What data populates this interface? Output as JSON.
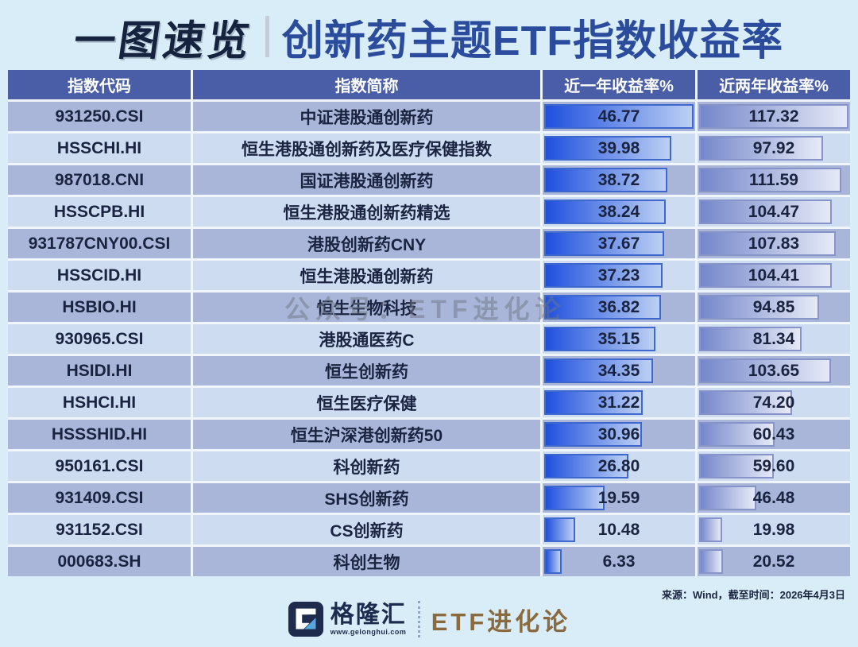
{
  "title": {
    "left": "一图速览",
    "right": "创新药主题ETF指数收益率"
  },
  "table": {
    "headers": [
      "指数代码",
      "指数简称",
      "近一年收益率%",
      "近两年收益率%"
    ],
    "rows": [
      {
        "code": "931250.CSI",
        "name": "中证港股通创新药",
        "y1": "46.77",
        "y2": "117.32"
      },
      {
        "code": "HSSCHI.HI",
        "name": "恒生港股通创新药及医疗保健指数",
        "y1": "39.98",
        "y2": "97.92"
      },
      {
        "code": "987018.CNI",
        "name": "国证港股通创新药",
        "y1": "38.72",
        "y2": "111.59"
      },
      {
        "code": "HSSCPB.HI",
        "name": "恒生港股通创新药精选",
        "y1": "38.24",
        "y2": "104.47"
      },
      {
        "code": "931787CNY00.CSI",
        "name": "港股创新药CNY",
        "y1": "37.67",
        "y2": "107.83"
      },
      {
        "code": "HSSCID.HI",
        "name": "恒生港股通创新药",
        "y1": "37.23",
        "y2": "104.41"
      },
      {
        "code": "HSBIO.HI",
        "name": "恒生生物科技",
        "y1": "36.82",
        "y2": "94.85"
      },
      {
        "code": "930965.CSI",
        "name": "港股通医药C",
        "y1": "35.15",
        "y2": "81.34"
      },
      {
        "code": "HSIDI.HI",
        "name": "恒生创新药",
        "y1": "34.35",
        "y2": "103.65"
      },
      {
        "code": "HSHCI.HI",
        "name": "恒生医疗保健",
        "y1": "31.22",
        "y2": "74.20"
      },
      {
        "code": "HSSSHID.HI",
        "name": "恒生沪深港创新药50",
        "y1": "30.96",
        "y2": "60.43"
      },
      {
        "code": "950161.CSI",
        "name": "科创新药",
        "y1": "26.80",
        "y2": "59.60"
      },
      {
        "code": "931409.CSI",
        "name": "SHS创新药",
        "y1": "19.59",
        "y2": "46.48"
      },
      {
        "code": "931152.CSI",
        "name": "CS创新药",
        "y1": "10.48",
        "y2": "19.98"
      },
      {
        "code": "000683.SH",
        "name": "科创生物",
        "y1": "6.33",
        "y2": "20.52"
      }
    ]
  },
  "watermark": "公众号：ETF进化论",
  "source_note": "来源：Wind，截至时间：2026年4月3日",
  "footer": {
    "brand": "格隆汇",
    "brand_url": "www.gelonghui.com",
    "sub_brand": "ETF进化论"
  },
  "colors": {
    "page_bg": "#d9edf8",
    "title_dark": "#16233f",
    "title_blue": "#2b4c9c",
    "header_bg": "#4a5ea7",
    "row_odd_bg": "#a9b6d9",
    "row_even_bg": "#cddcf0",
    "bar_y1_start": "#1f50de",
    "bar_y1_end": "#bcd0f3",
    "bar_y1_border": "#3f68cf",
    "bar_y2_start": "#7587ca",
    "bar_y2_end": "#e6eaf7",
    "bar_y2_border": "#8794c9",
    "text_dark": "#1a2440",
    "sub_brand_color": "#8a6a3e"
  },
  "chart_data": {
    "type": "bar",
    "orientation": "horizontal",
    "title": "创新药主题ETF指数收益率",
    "categories": [
      "中证港股通创新药",
      "恒生港股通创新药及医疗保健指数",
      "国证港股通创新药",
      "恒生港股通创新药精选",
      "港股创新药CNY",
      "恒生港股通创新药",
      "恒生生物科技",
      "港股通医药C",
      "恒生创新药",
      "恒生医疗保健",
      "恒生沪深港创新药50",
      "科创新药",
      "SHS创新药",
      "CS创新药",
      "科创生物"
    ],
    "category_codes": [
      "931250.CSI",
      "HSSCHI.HI",
      "987018.CNI",
      "HSSCPB.HI",
      "931787CNY00.CSI",
      "HSSCID.HI",
      "HSBIO.HI",
      "930965.CSI",
      "HSIDI.HI",
      "HSHCI.HI",
      "HSSSHID.HI",
      "950161.CSI",
      "931409.CSI",
      "931152.CSI",
      "000683.SH"
    ],
    "series": [
      {
        "name": "近一年收益率%",
        "values": [
          46.77,
          39.98,
          38.72,
          38.24,
          37.67,
          37.23,
          36.82,
          35.15,
          34.35,
          31.22,
          30.96,
          26.8,
          19.59,
          10.48,
          6.33
        ]
      },
      {
        "name": "近两年收益率%",
        "values": [
          117.32,
          97.92,
          111.59,
          104.47,
          107.83,
          104.41,
          94.85,
          81.34,
          103.65,
          74.2,
          60.43,
          59.6,
          46.48,
          19.98,
          20.52
        ]
      }
    ],
    "xlabel": "",
    "ylabel": "",
    "value_labels_shown": true,
    "source": "来源：Wind，截至时间：2026年4月3日"
  }
}
